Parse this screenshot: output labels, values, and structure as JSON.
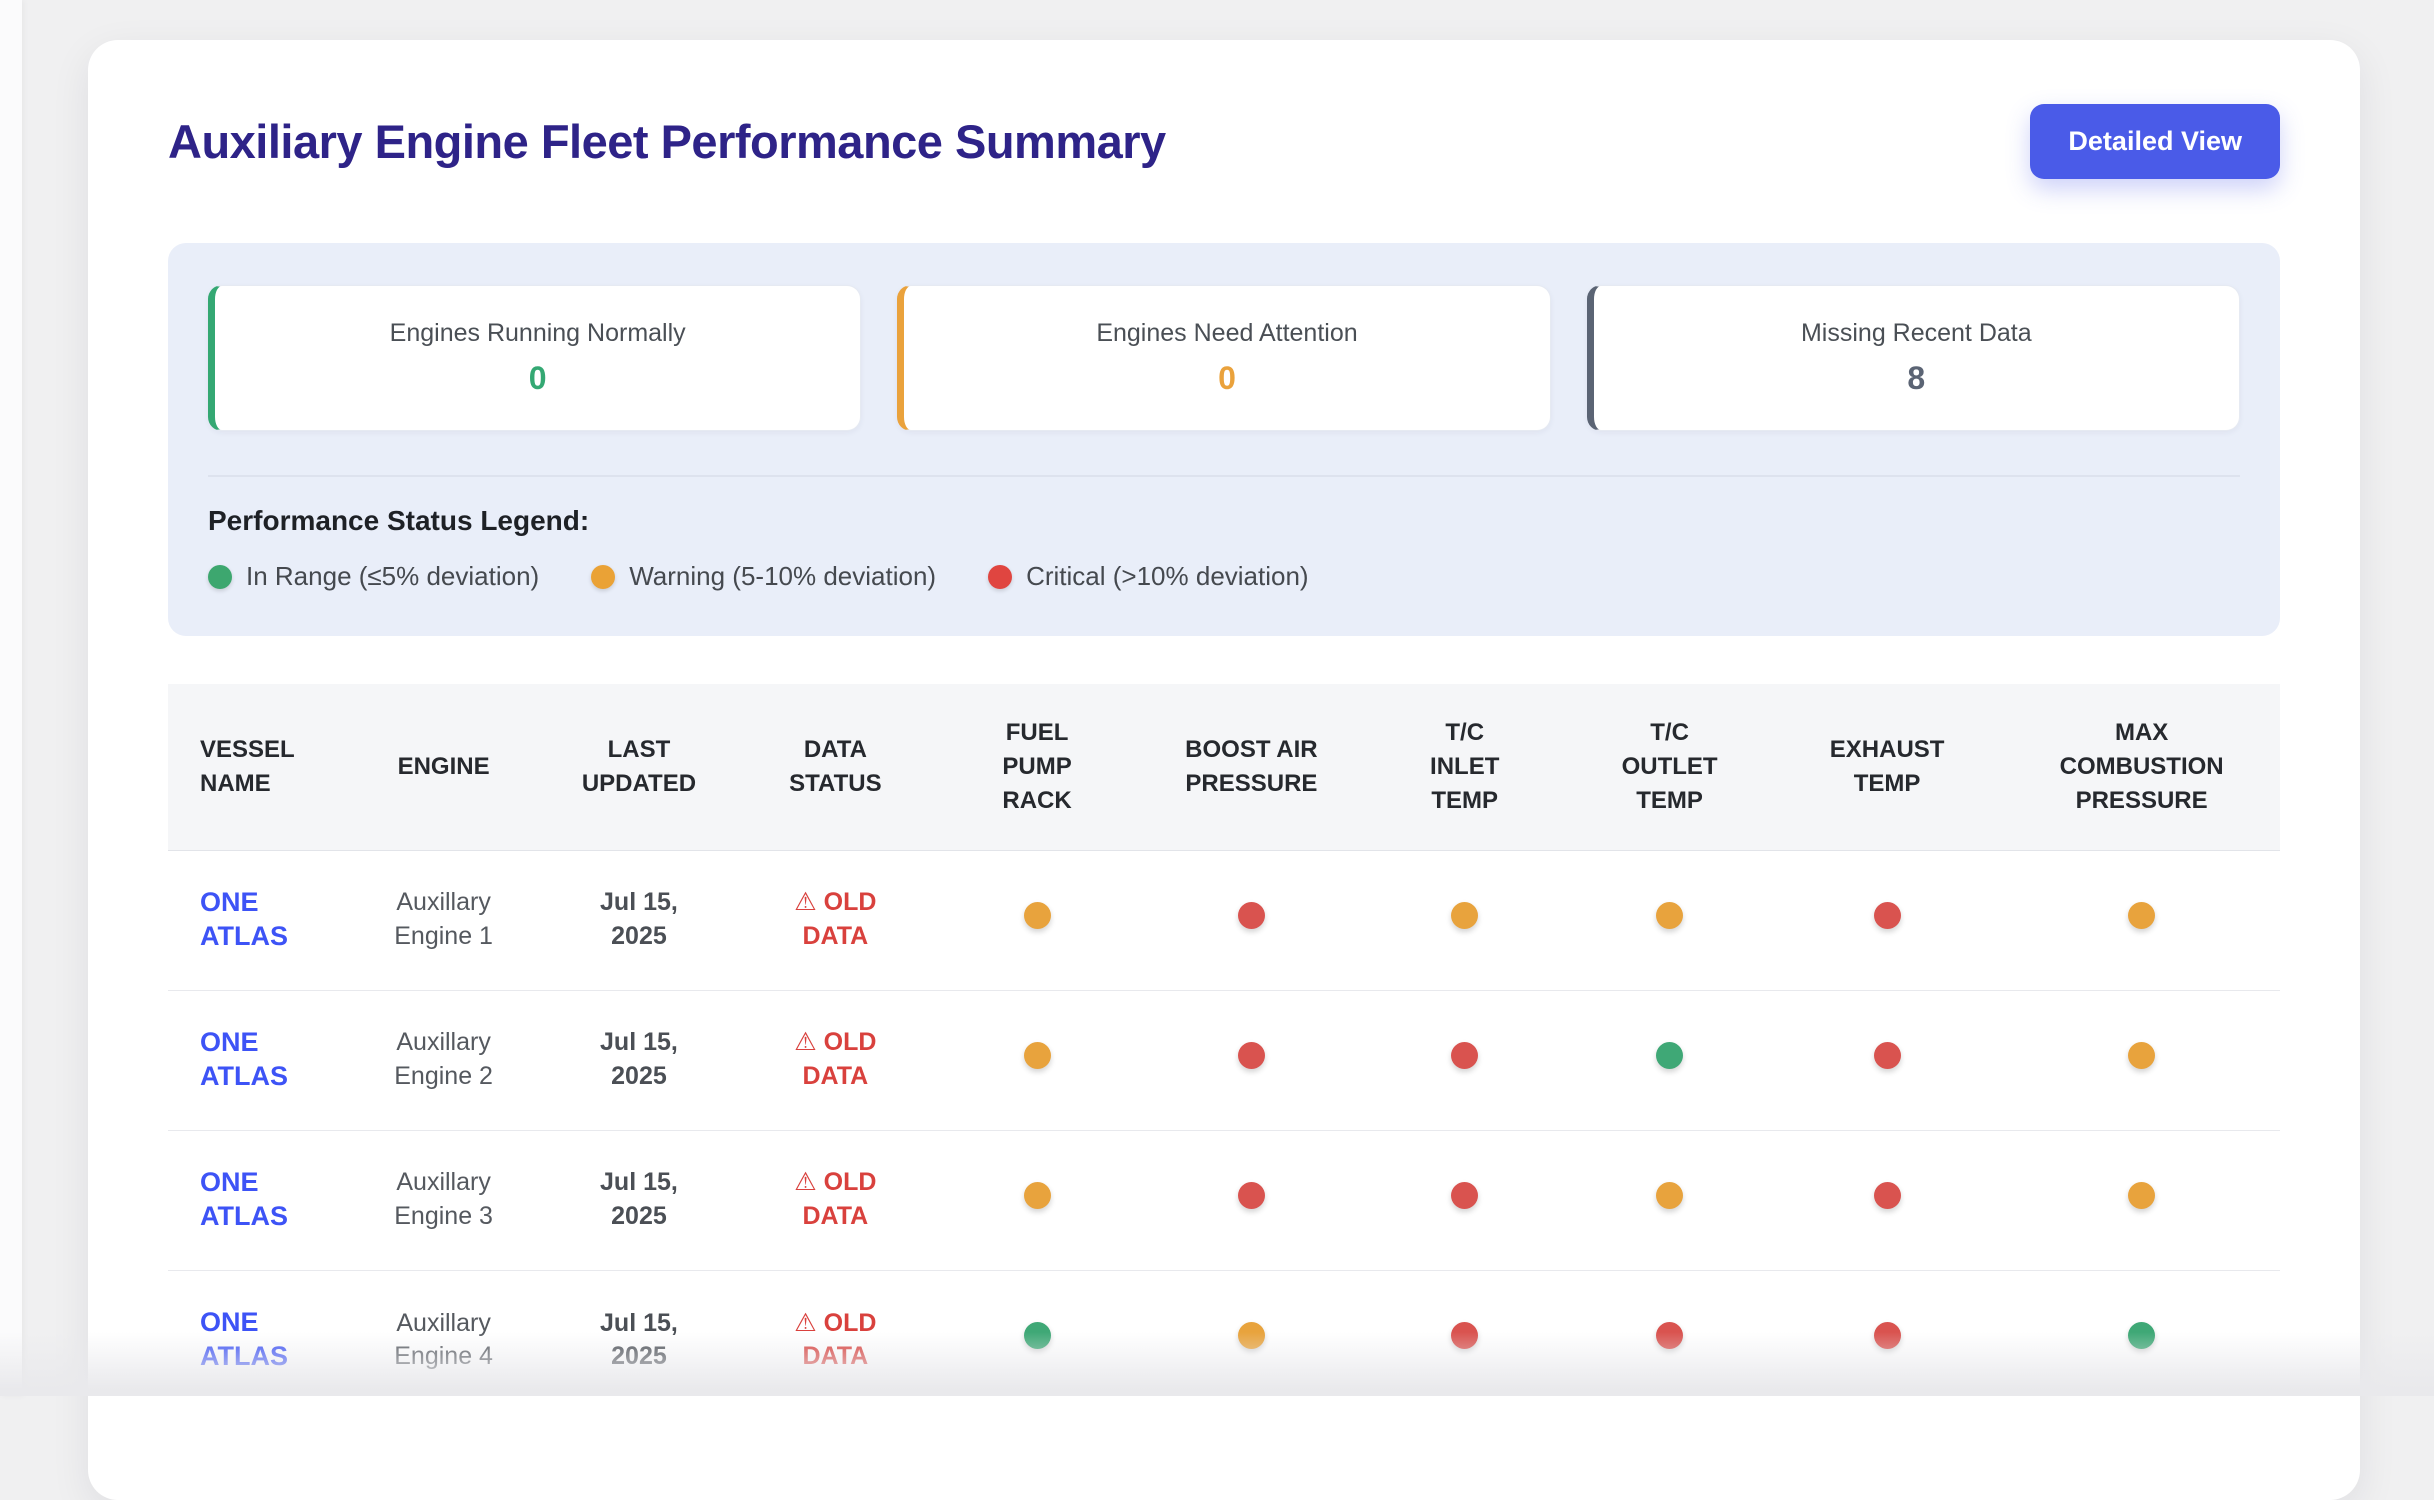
{
  "page": {
    "title": "Auxiliary Engine Fleet Performance Summary",
    "detailed_view_label": "Detailed View"
  },
  "colors": {
    "title_indigo": "#2e2388",
    "button_blue": "#4a5be8",
    "link_blue": "#3d53f6",
    "status_red_text": "#d9413d",
    "green": "#3fa876",
    "orange": "#e8a33d",
    "red": "#d9534f",
    "slate": "#5b6474"
  },
  "icons": {
    "warning": "⚠"
  },
  "summary_cards": [
    {
      "id": "engines-running-normally",
      "label": "Engines Running Normally",
      "value": "0",
      "color": "#34a873"
    },
    {
      "id": "engines-need-attention",
      "label": "Engines Need Attention",
      "value": "0",
      "color": "#eaa23c"
    },
    {
      "id": "missing-recent-data",
      "label": "Missing Recent Data",
      "value": "8",
      "color": "#5b6474"
    }
  ],
  "legend": {
    "title": "Performance Status Legend:",
    "items": [
      {
        "id": "in-range",
        "label": "In Range (≤5% deviation)",
        "color": "#3da76f"
      },
      {
        "id": "warning",
        "label": "Warning (5-10% deviation)",
        "color": "#eaa236"
      },
      {
        "id": "critical",
        "label": "Critical (>10% deviation)",
        "color": "#e04540"
      }
    ]
  },
  "table": {
    "columns": [
      {
        "label": "VESSEL NAME",
        "wclass": "w-vessel"
      },
      {
        "label": "ENGINE",
        "wclass": "w-engine"
      },
      {
        "label": "LAST UPDATED",
        "wclass": "w-updated"
      },
      {
        "label": "DATA STATUS",
        "wclass": "w-status"
      },
      {
        "label": "FUEL PUMP RACK",
        "wclass": "w-fuel"
      },
      {
        "label": "BOOST AIR PRESSURE",
        "wclass": "w-boost"
      },
      {
        "label": "T/C INLET TEMP",
        "wclass": "w-tc"
      },
      {
        "label": "T/C OUTLET TEMP",
        "wclass": "w-tc"
      },
      {
        "label": "EXHAUST TEMP",
        "wclass": "w-exhaust"
      },
      {
        "label": "MAX COMBUSTION PRESSURE",
        "wclass": "w-max"
      }
    ],
    "column_width_percents": [
      8.5,
      9.1,
      9.4,
      9.2,
      9.9,
      10.4,
      9.8,
      9.6,
      11.0,
      13.1
    ],
    "status_colors": {
      "green": "#3fa876",
      "orange": "#e8a33d",
      "red": "#d9534f"
    },
    "rows": [
      {
        "vessel": "ONE ATLAS",
        "engine": "Auxillary Engine 1",
        "last_updated": "Jul 15, 2025",
        "data_status": "OLD DATA",
        "statuses": [
          "orange",
          "red",
          "orange",
          "orange",
          "red",
          "orange"
        ]
      },
      {
        "vessel": "ONE ATLAS",
        "engine": "Auxillary Engine 2",
        "last_updated": "Jul 15, 2025",
        "data_status": "OLD DATA",
        "statuses": [
          "orange",
          "red",
          "red",
          "green",
          "red",
          "orange"
        ]
      },
      {
        "vessel": "ONE ATLAS",
        "engine": "Auxillary Engine 3",
        "last_updated": "Jul 15, 2025",
        "data_status": "OLD DATA",
        "statuses": [
          "orange",
          "red",
          "red",
          "orange",
          "red",
          "orange"
        ]
      },
      {
        "vessel": "ONE ATLAS",
        "engine": "Auxillary Engine 4",
        "last_updated": "Jul 15, 2025",
        "data_status": "OLD DATA",
        "statuses": [
          "green",
          "orange",
          "red",
          "red",
          "red",
          "green"
        ]
      }
    ]
  }
}
